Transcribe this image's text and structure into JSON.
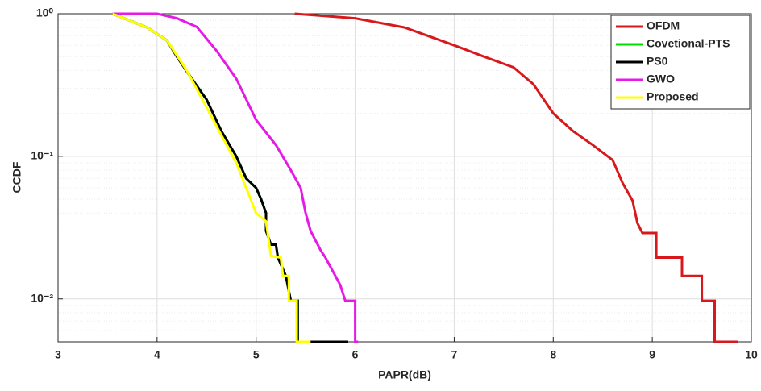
{
  "chart_data": {
    "type": "line",
    "x_label": "PAPR(dB)",
    "y_label": "CCDF",
    "log_y": true,
    "grid": true,
    "minor_grid": true,
    "legend": "upper right",
    "xlim": [
      3,
      10
    ],
    "xticks": [
      3,
      4,
      5,
      6,
      7,
      8,
      9,
      10
    ],
    "ylim": [
      0.005,
      1
    ],
    "yticks": [
      {
        "value": 1,
        "label": "10⁰"
      },
      {
        "value": 0.1,
        "label": "10⁻¹"
      },
      {
        "value": 0.01,
        "label": "10⁻²"
      }
    ],
    "series": [
      {
        "name": "OFDM",
        "color": "#d7191c",
        "x": [
          5.39,
          6.0,
          6.5,
          7.0,
          7.3,
          7.6,
          7.8,
          8.0,
          8.2,
          8.4,
          8.6,
          8.7,
          8.8,
          8.85,
          8.9,
          9.04,
          9.04,
          9.3,
          9.3,
          9.5,
          9.5,
          9.63,
          9.63,
          9.87
        ],
        "values": [
          1.0,
          0.93,
          0.8,
          0.6,
          0.5,
          0.42,
          0.32,
          0.2,
          0.15,
          0.12,
          0.094,
          0.065,
          0.049,
          0.034,
          0.029,
          0.029,
          0.0195,
          0.0195,
          0.0145,
          0.0145,
          0.0097,
          0.0097,
          0.005,
          0.005
        ]
      },
      {
        "name": "Covetional-PTS",
        "color": "#00e000",
        "x": [
          3.55,
          3.9,
          4.1,
          4.2,
          4.35,
          4.5,
          4.65,
          4.8,
          4.9,
          5.0,
          5.05,
          5.1,
          5.1,
          5.15,
          5.2,
          5.22,
          5.3,
          5.35,
          5.42,
          5.42,
          5.93
        ],
        "values": [
          1.0,
          0.8,
          0.65,
          0.5,
          0.35,
          0.25,
          0.15,
          0.1,
          0.07,
          0.06,
          0.05,
          0.04,
          0.03,
          0.024,
          0.024,
          0.0195,
          0.0145,
          0.0097,
          0.0097,
          0.005,
          0.005
        ]
      },
      {
        "name": "PS0",
        "color": "#000000",
        "x": [
          3.55,
          3.9,
          4.1,
          4.2,
          4.35,
          4.5,
          4.65,
          4.8,
          4.9,
          5.0,
          5.05,
          5.1,
          5.1,
          5.15,
          5.2,
          5.22,
          5.3,
          5.35,
          5.42,
          5.42,
          5.93
        ],
        "values": [
          1.0,
          0.8,
          0.65,
          0.5,
          0.35,
          0.25,
          0.15,
          0.1,
          0.07,
          0.06,
          0.05,
          0.04,
          0.03,
          0.024,
          0.024,
          0.0195,
          0.0145,
          0.0097,
          0.0097,
          0.005,
          0.005
        ]
      },
      {
        "name": "GWO",
        "color": "#e619e6",
        "x": [
          3.55,
          4.0,
          4.2,
          4.4,
          4.6,
          4.8,
          5.0,
          5.2,
          5.35,
          5.45,
          5.5,
          5.55,
          5.65,
          5.7,
          5.8,
          5.85,
          5.9,
          6.0,
          6.0,
          6.03
        ],
        "values": [
          1.0,
          1.0,
          0.93,
          0.81,
          0.55,
          0.35,
          0.18,
          0.12,
          0.08,
          0.06,
          0.04,
          0.03,
          0.022,
          0.0195,
          0.0145,
          0.0125,
          0.0097,
          0.0097,
          0.005,
          0.005
        ]
      },
      {
        "name": "Proposed",
        "color": "#ffff00",
        "x": [
          3.55,
          3.9,
          4.1,
          4.3,
          4.5,
          4.65,
          4.8,
          4.9,
          5.0,
          5.1,
          5.15,
          5.25,
          5.27,
          5.33,
          5.33,
          5.41,
          5.41,
          5.55
        ],
        "values": [
          1.0,
          0.8,
          0.65,
          0.4,
          0.22,
          0.14,
          0.09,
          0.06,
          0.04,
          0.035,
          0.02,
          0.0195,
          0.0145,
          0.0145,
          0.0097,
          0.0097,
          0.005,
          0.005
        ]
      }
    ]
  }
}
